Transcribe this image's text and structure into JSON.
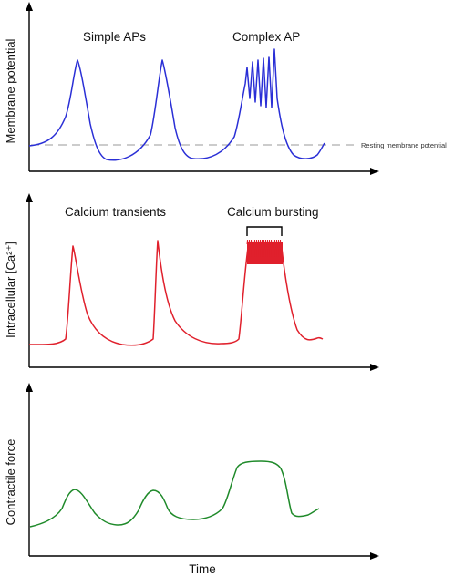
{
  "colors": {
    "membrane": "#2a2fd6",
    "calcium": "#e0202c",
    "force": "#1f8a2a",
    "axis": "#000000",
    "baseline": "#9a9a9a"
  },
  "panels": {
    "membrane": {
      "ylabel": "Membrane potential",
      "annotation_simple": "Simple APs",
      "annotation_complex": "Complex AP",
      "baseline_label": "Resting membrane potential"
    },
    "calcium": {
      "ylabel": "Intracellular [Ca²⁺]",
      "annotation_transients": "Calcium transients",
      "annotation_bursting": "Calcium bursting"
    },
    "force": {
      "ylabel": "Contractile force"
    }
  },
  "xlabel": "Time"
}
